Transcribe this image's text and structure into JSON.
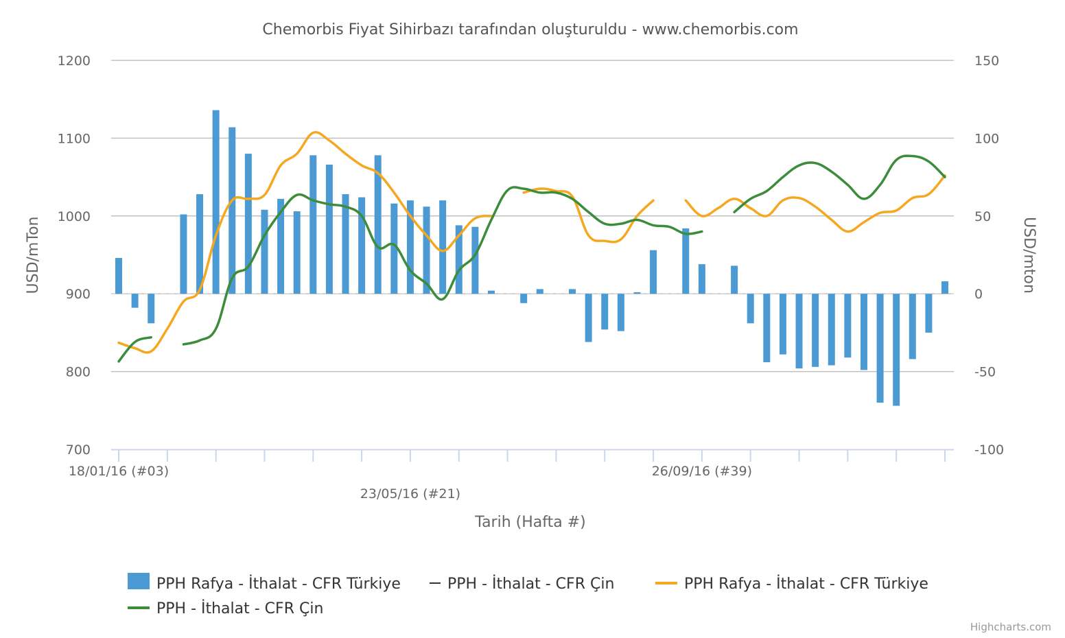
{
  "chart_data": {
    "type": "bar",
    "title": "Chemorbis Fiyat Sihirbazı tarafından oluşturuldu - www.chemorbis.com",
    "xlabel": "Tarih (Hafta #)",
    "ylabel_left": "USD/mTon",
    "ylabel_right": "USD/mton",
    "y_left": {
      "min": 700,
      "max": 1200,
      "ticks": [
        700,
        800,
        900,
        1000,
        1100,
        1200
      ]
    },
    "y_right": {
      "min": -100,
      "max": 150,
      "ticks": [
        -100,
        -50,
        0,
        50,
        100,
        150
      ]
    },
    "x_labels": [
      {
        "week": 3,
        "label": "18/01/16 (#03)"
      },
      {
        "week": 21,
        "label": "23/05/16 (#21)"
      },
      {
        "week": 39,
        "label": "26/09/16 (#39)"
      }
    ],
    "x_ticks": [
      3,
      6,
      9,
      12,
      15,
      18,
      21,
      24,
      27,
      30,
      33,
      36,
      39,
      42,
      45,
      48,
      51,
      54
    ],
    "grid": true,
    "legend_position": "bottom",
    "credits": "Highcharts.com",
    "series": [
      {
        "name": "PPH Rafya - İthalat - CFR Türkiye",
        "kind": "column",
        "axis": "right",
        "color": "#4c9ad4",
        "points": [
          [
            3,
            23
          ],
          [
            4,
            -9
          ],
          [
            5,
            -19
          ],
          [
            7,
            51
          ],
          [
            8,
            64
          ],
          [
            9,
            118
          ],
          [
            10,
            107
          ],
          [
            11,
            90
          ],
          [
            12,
            54
          ],
          [
            13,
            61
          ],
          [
            14,
            53
          ],
          [
            15,
            89
          ],
          [
            16,
            83
          ],
          [
            17,
            64
          ],
          [
            18,
            62
          ],
          [
            19,
            89
          ],
          [
            20,
            58
          ],
          [
            21,
            60
          ],
          [
            22,
            56
          ],
          [
            23,
            60
          ],
          [
            24,
            44
          ],
          [
            25,
            43
          ],
          [
            26,
            2
          ],
          [
            28,
            -6
          ],
          [
            29,
            3
          ],
          [
            31,
            3
          ],
          [
            32,
            -31
          ],
          [
            33,
            -23
          ],
          [
            34,
            -24
          ],
          [
            35,
            1
          ],
          [
            36,
            28
          ],
          [
            38,
            42
          ],
          [
            39,
            19
          ],
          [
            41,
            18
          ],
          [
            42,
            -19
          ],
          [
            43,
            -44
          ],
          [
            44,
            -39
          ],
          [
            45,
            -48
          ],
          [
            46,
            -47
          ],
          [
            47,
            -46
          ],
          [
            48,
            -41
          ],
          [
            49,
            -49
          ],
          [
            50,
            -70
          ],
          [
            51,
            -72
          ],
          [
            52,
            -42
          ],
          [
            53,
            -25
          ],
          [
            54,
            8
          ]
        ]
      },
      {
        "name": "PPH - İthalat - CFR Çin",
        "kind": "line",
        "axis": "right",
        "color": "#333333",
        "points": []
      },
      {
        "name": "PPH Rafya - İthalat - CFR Türkiye",
        "kind": "line",
        "axis": "left",
        "color": "#f5a81f",
        "segments": [
          [
            [
              3,
              837
            ],
            [
              4,
              830
            ],
            [
              5,
              826
            ],
            [
              6,
              855
            ],
            [
              7,
              890
            ],
            [
              8,
              905
            ],
            [
              9,
              975
            ],
            [
              10,
              1020
            ],
            [
              11,
              1022
            ],
            [
              12,
              1027
            ],
            [
              13,
              1065
            ],
            [
              14,
              1080
            ],
            [
              15,
              1107
            ],
            [
              16,
              1097
            ],
            [
              17,
              1080
            ],
            [
              18,
              1065
            ],
            [
              19,
              1055
            ],
            [
              20,
              1030
            ],
            [
              21,
              1000
            ],
            [
              22,
              975
            ],
            [
              23,
              955
            ],
            [
              24,
              975
            ],
            [
              25,
              997
            ],
            [
              26,
              1000
            ]
          ],
          [
            [
              28,
              1030
            ],
            [
              29,
              1035
            ],
            [
              30,
              1032
            ],
            [
              31,
              1025
            ],
            [
              32,
              975
            ],
            [
              33,
              968
            ],
            [
              34,
              970
            ],
            [
              35,
              1000
            ],
            [
              36,
              1020
            ]
          ],
          [
            [
              38,
              1020
            ],
            [
              39,
              1000
            ],
            [
              40,
              1010
            ],
            [
              41,
              1022
            ],
            [
              42,
              1010
            ],
            [
              43,
              1000
            ],
            [
              44,
              1020
            ],
            [
              45,
              1023
            ],
            [
              46,
              1012
            ],
            [
              47,
              995
            ],
            [
              48,
              980
            ],
            [
              49,
              992
            ],
            [
              50,
              1004
            ],
            [
              51,
              1007
            ],
            [
              52,
              1023
            ],
            [
              53,
              1028
            ],
            [
              54,
              1052
            ]
          ]
        ]
      },
      {
        "name": "PPH - İthalat - CFR Çin",
        "kind": "line",
        "axis": "left",
        "color": "#3c8c3c",
        "segments": [
          [
            [
              3,
              813
            ],
            [
              4,
              838
            ],
            [
              5,
              844
            ]
          ],
          [
            [
              7,
              835
            ],
            [
              8,
              840
            ],
            [
              9,
              855
            ],
            [
              10,
              920
            ],
            [
              11,
              935
            ],
            [
              12,
              975
            ],
            [
              13,
              1005
            ],
            [
              14,
              1027
            ],
            [
              15,
              1020
            ],
            [
              16,
              1015
            ],
            [
              17,
              1012
            ],
            [
              18,
              1000
            ],
            [
              19,
              960
            ],
            [
              20,
              963
            ],
            [
              21,
              930
            ],
            [
              22,
              913
            ],
            [
              23,
              893
            ],
            [
              24,
              930
            ],
            [
              25,
              950
            ],
            [
              26,
              995
            ],
            [
              27,
              1033
            ],
            [
              28,
              1035
            ],
            [
              29,
              1030
            ],
            [
              30,
              1030
            ],
            [
              31,
              1022
            ],
            [
              32,
              1005
            ],
            [
              33,
              990
            ],
            [
              34,
              990
            ],
            [
              35,
              995
            ],
            [
              36,
              988
            ],
            [
              37,
              986
            ],
            [
              38,
              977
            ],
            [
              39,
              980
            ]
          ],
          [
            [
              41,
              1005
            ],
            [
              42,
              1022
            ],
            [
              43,
              1032
            ],
            [
              44,
              1050
            ],
            [
              45,
              1065
            ],
            [
              46,
              1068
            ],
            [
              47,
              1057
            ],
            [
              48,
              1040
            ],
            [
              49,
              1022
            ],
            [
              50,
              1040
            ],
            [
              51,
              1072
            ],
            [
              52,
              1077
            ],
            [
              53,
              1070
            ],
            [
              54,
              1050
            ]
          ]
        ]
      }
    ]
  }
}
